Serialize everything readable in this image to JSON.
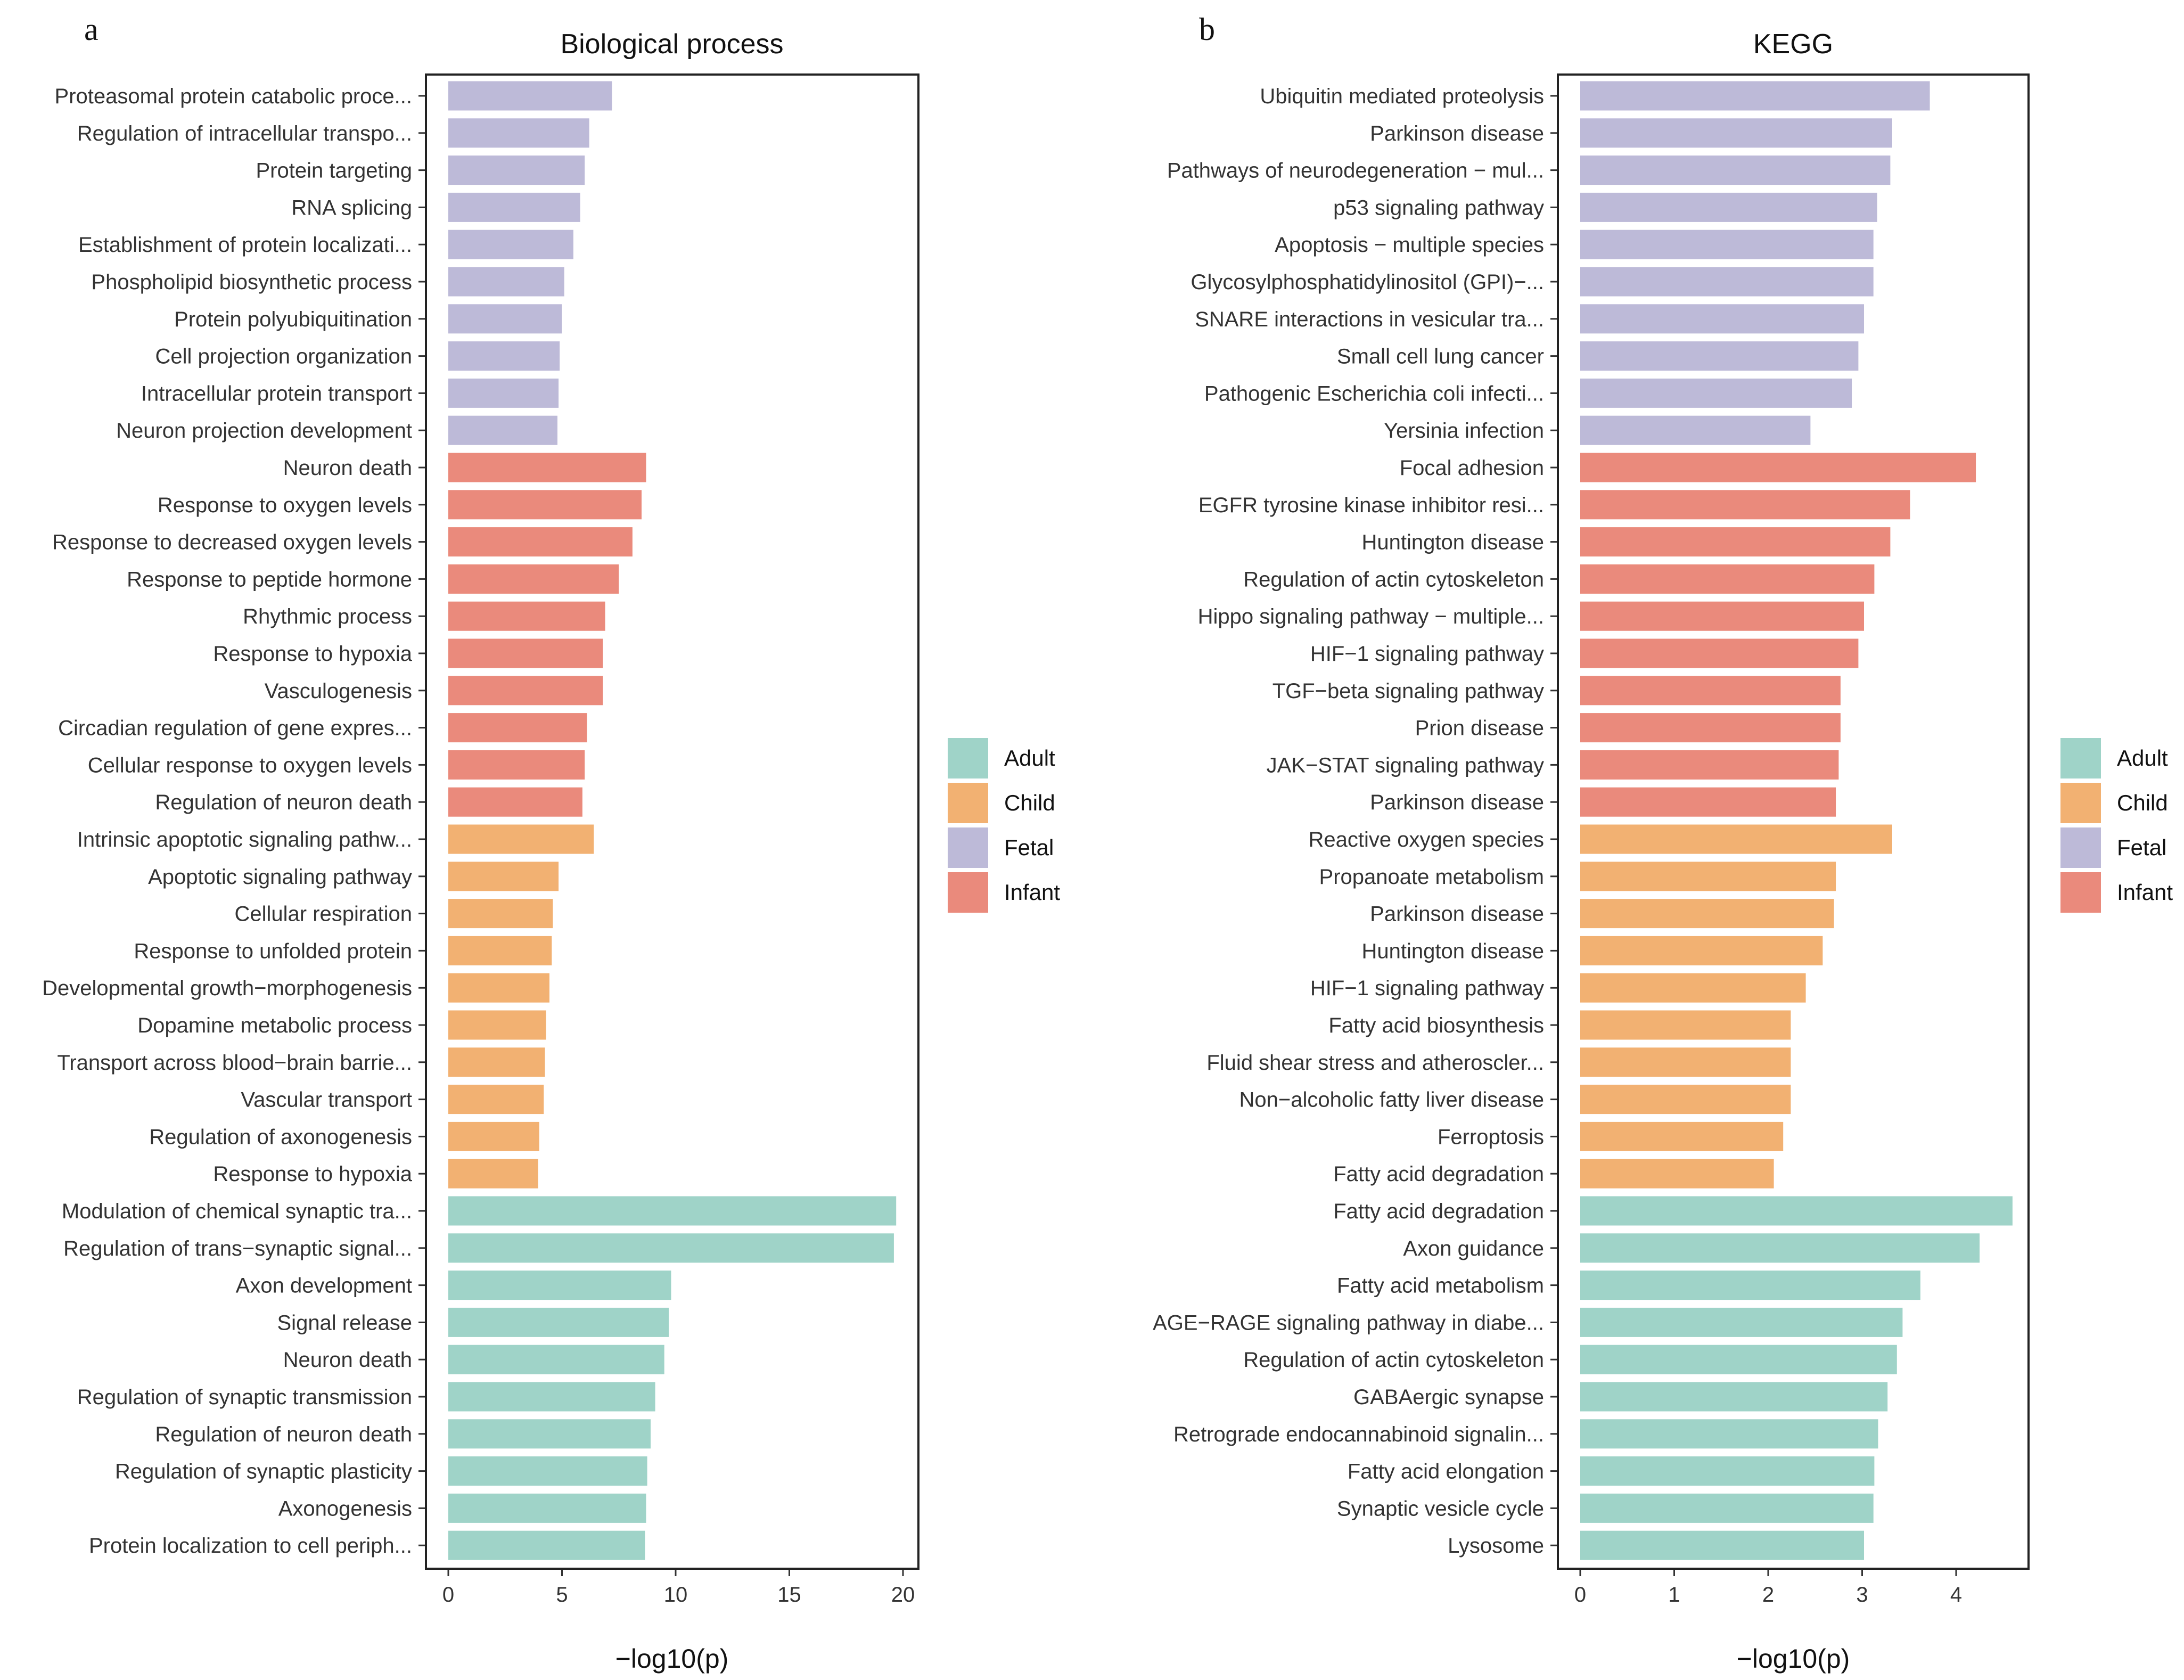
{
  "colors": {
    "Adult": "#9fd3c8",
    "Child": "#f2b172",
    "Fetal": "#bdbad8",
    "Infant": "#ea8a7c"
  },
  "chart_data": [
    {
      "panel": "a",
      "type": "bar",
      "orientation": "horizontal",
      "title": "Biological process",
      "xlabel": "−log10(p)",
      "ylabel": "",
      "xlim": [
        0,
        20.8
      ],
      "xticks": [
        0,
        5,
        10,
        15,
        20
      ],
      "grid": false,
      "legend": {
        "position": "right",
        "entries": [
          "Adult",
          "Child",
          "Fetal",
          "Infant"
        ]
      },
      "categories": [
        "Proteasomal protein catabolic proce...",
        "Regulation of intracellular transpo...",
        "Protein targeting",
        "RNA splicing",
        "Establishment of protein localizati...",
        "Phospholipid biosynthetic process",
        "Protein polyubiquitination",
        "Cell projection organization",
        "Intracellular protein transport",
        "Neuron projection development",
        "Neuron death",
        "Response to oxygen levels",
        "Response to decreased oxygen levels",
        "Response to peptide hormone",
        "Rhythmic process",
        "Response to hypoxia",
        "Vasculogenesis",
        "Circadian regulation of gene expres...",
        "Cellular response to oxygen levels",
        "Regulation of neuron death",
        "Intrinsic apoptotic signaling pathw...",
        "Apoptotic signaling pathway",
        "Cellular respiration",
        "Response to unfolded protein",
        "Developmental growth−morphogenesis",
        "Dopamine metabolic process",
        "Transport across blood−brain barrie...",
        "Vascular transport",
        "Regulation of axonogenesis",
        "Response to hypoxia",
        "Modulation of chemical synaptic tra...",
        "Regulation of trans−synaptic signal...",
        "Axon development",
        "Signal release",
        "Neuron death",
        "Regulation of synaptic transmission",
        "Regulation of neuron death",
        "Regulation of synaptic plasticity",
        "Axonogenesis",
        "Protein localization to cell periph..."
      ],
      "values": [
        7.2,
        6.2,
        6.0,
        5.8,
        5.5,
        5.1,
        5.0,
        4.9,
        4.85,
        4.8,
        8.7,
        8.5,
        8.1,
        7.5,
        6.9,
        6.8,
        6.8,
        6.1,
        6.0,
        5.9,
        6.4,
        4.85,
        4.6,
        4.55,
        4.45,
        4.3,
        4.25,
        4.2,
        4.0,
        3.95,
        19.7,
        19.6,
        9.8,
        9.7,
        9.5,
        9.1,
        8.9,
        8.75,
        8.7,
        8.65
      ],
      "groups": [
        "Fetal",
        "Fetal",
        "Fetal",
        "Fetal",
        "Fetal",
        "Fetal",
        "Fetal",
        "Fetal",
        "Fetal",
        "Fetal",
        "Infant",
        "Infant",
        "Infant",
        "Infant",
        "Infant",
        "Infant",
        "Infant",
        "Infant",
        "Infant",
        "Infant",
        "Child",
        "Child",
        "Child",
        "Child",
        "Child",
        "Child",
        "Child",
        "Child",
        "Child",
        "Child",
        "Adult",
        "Adult",
        "Adult",
        "Adult",
        "Adult",
        "Adult",
        "Adult",
        "Adult",
        "Adult",
        "Adult"
      ]
    },
    {
      "panel": "b",
      "type": "bar",
      "orientation": "horizontal",
      "title": "KEGG",
      "xlabel": "−log10(p)",
      "ylabel": "",
      "xlim": [
        0,
        4.78
      ],
      "xticks": [
        0,
        1,
        2,
        3,
        4
      ],
      "grid": false,
      "legend": {
        "position": "right",
        "entries": [
          "Adult",
          "Child",
          "Fetal",
          "Infant"
        ]
      },
      "categories": [
        "Ubiquitin mediated proteolysis",
        "Parkinson disease",
        "Pathways of neurodegeneration − mul...",
        "p53 signaling pathway",
        "Apoptosis − multiple species",
        "Glycosylphosphatidylinositol (GPI)−...",
        "SNARE interactions in vesicular tra...",
        "Small cell lung cancer",
        "Pathogenic Escherichia coli infecti...",
        "Yersinia infection",
        "Focal adhesion",
        "EGFR tyrosine kinase inhibitor resi...",
        "Huntington disease",
        "Regulation of actin cytoskeleton",
        "Hippo signaling pathway − multiple...",
        "HIF−1 signaling pathway",
        "TGF−beta signaling pathway",
        "Prion disease",
        "JAK−STAT signaling pathway",
        "Parkinson disease",
        "Reactive oxygen species",
        "Propanoate metabolism",
        "Parkinson disease",
        "Huntington disease",
        "HIF−1 signaling pathway",
        "Fatty acid biosynthesis",
        "Fluid shear stress and atheroscler­...",
        "Non−alcoholic fatty liver disease",
        "Ferroptosis",
        "Fatty acid degradation",
        "Fatty acid degradation",
        "Axon guidance",
        "Fatty acid metabolism",
        "AGE−RAGE signaling pathway in diabe...",
        "Regulation of actin cytoskeleton",
        "GABAergic synapse",
        "Retrograde endocannabinoid signalin...",
        "Fatty acid elongation",
        "Synaptic vesicle cycle",
        "Lysosome"
      ],
      "values": [
        3.72,
        3.32,
        3.3,
        3.16,
        3.12,
        3.12,
        3.02,
        2.96,
        2.89,
        2.45,
        4.21,
        3.51,
        3.3,
        3.13,
        3.02,
        2.96,
        2.77,
        2.77,
        2.75,
        2.72,
        3.32,
        2.72,
        2.7,
        2.58,
        2.4,
        2.24,
        2.24,
        2.24,
        2.16,
        2.06,
        4.6,
        4.25,
        3.62,
        3.43,
        3.37,
        3.27,
        3.17,
        3.13,
        3.12,
        3.02
      ],
      "groups": [
        "Fetal",
        "Fetal",
        "Fetal",
        "Fetal",
        "Fetal",
        "Fetal",
        "Fetal",
        "Fetal",
        "Fetal",
        "Fetal",
        "Infant",
        "Infant",
        "Infant",
        "Infant",
        "Infant",
        "Infant",
        "Infant",
        "Infant",
        "Infant",
        "Infant",
        "Child",
        "Child",
        "Child",
        "Child",
        "Child",
        "Child",
        "Child",
        "Child",
        "Child",
        "Child",
        "Adult",
        "Adult",
        "Adult",
        "Adult",
        "Adult",
        "Adult",
        "Adult",
        "Adult",
        "Adult",
        "Adult"
      ]
    }
  ]
}
